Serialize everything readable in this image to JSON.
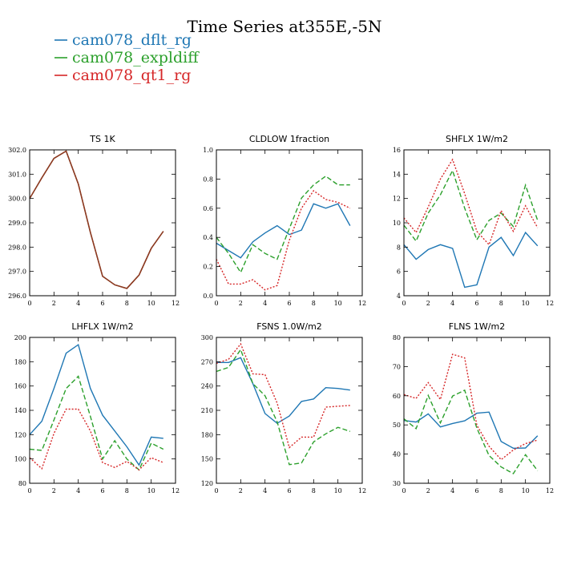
{
  "figure": {
    "title": "Time Series at355E,-5N",
    "legend": [
      {
        "name": "cam078_dflt_rg",
        "color": "#1f77b4",
        "dash": "solid"
      },
      {
        "name": "cam078_expldiff",
        "color": "#2ca02c",
        "dash": "dashed"
      },
      {
        "name": "cam078_qt1_rg",
        "color": "#d62728",
        "dash": "dotted"
      }
    ]
  },
  "chart_data": [
    {
      "type": "line",
      "title": "TS   1K",
      "x": [
        0,
        1,
        2,
        3,
        4,
        5,
        6,
        7,
        8,
        9,
        10,
        11
      ],
      "xlim": [
        0,
        12
      ],
      "xticks": [
        0,
        2,
        4,
        6,
        8,
        10,
        12
      ],
      "xtick_labels": [
        "0",
        "2",
        "4",
        "6",
        "8",
        "10",
        "12"
      ],
      "ylim": [
        296,
        302
      ],
      "yticks": [
        296,
        297,
        298,
        299,
        300,
        301,
        302
      ],
      "ytick_labels": [
        "296.0",
        "297.0",
        "298.0",
        "299.0",
        "300.0",
        "301.0",
        "302.0"
      ],
      "series": [
        {
          "name": "cam078_dflt_rg",
          "values": [
            300.0,
            300.85,
            301.65,
            301.95,
            300.6,
            298.6,
            296.8,
            296.45,
            296.3,
            296.85,
            297.95,
            298.65
          ]
        },
        {
          "name": "cam078_expldiff",
          "values": [
            300.0,
            300.85,
            301.65,
            301.95,
            300.6,
            298.6,
            296.8,
            296.45,
            296.3,
            296.85,
            297.95,
            298.65
          ]
        },
        {
          "name": "cam078_qt1_rg",
          "values": [
            300.0,
            300.85,
            301.65,
            301.95,
            300.6,
            298.6,
            296.8,
            296.45,
            296.3,
            296.85,
            297.95,
            298.65
          ]
        }
      ]
    },
    {
      "type": "line",
      "title": "CLDLOW   1fraction",
      "x": [
        0,
        1,
        2,
        3,
        4,
        5,
        6,
        7,
        8,
        9,
        10,
        11
      ],
      "xlim": [
        0,
        12
      ],
      "xticks": [
        0,
        2,
        4,
        6,
        8,
        10,
        12
      ],
      "xtick_labels": [
        "0",
        "2",
        "4",
        "6",
        "8",
        "10",
        "12"
      ],
      "ylim": [
        0,
        1
      ],
      "yticks": [
        0,
        0.2,
        0.4,
        0.6,
        0.8,
        1.0
      ],
      "ytick_labels": [
        "0.0",
        "0.2",
        "0.4",
        "0.6",
        "0.8",
        "1.0"
      ],
      "series": [
        {
          "name": "cam078_dflt_rg",
          "values": [
            0.36,
            0.31,
            0.26,
            0.37,
            0.43,
            0.48,
            0.42,
            0.45,
            0.63,
            0.6,
            0.63,
            0.48
          ]
        },
        {
          "name": "cam078_expldiff",
          "values": [
            0.4,
            0.29,
            0.16,
            0.35,
            0.29,
            0.25,
            0.46,
            0.67,
            0.76,
            0.82,
            0.76,
            0.76
          ]
        },
        {
          "name": "cam078_qt1_rg",
          "values": [
            0.25,
            0.08,
            0.08,
            0.11,
            0.04,
            0.07,
            0.38,
            0.6,
            0.72,
            0.66,
            0.64,
            0.6
          ]
        }
      ]
    },
    {
      "type": "line",
      "title": "SHFLX   1W/m2",
      "x": [
        0,
        1,
        2,
        3,
        4,
        5,
        6,
        7,
        8,
        9,
        10,
        11
      ],
      "xlim": [
        0,
        12
      ],
      "xticks": [
        0,
        2,
        4,
        6,
        8,
        10,
        12
      ],
      "xtick_labels": [
        "0",
        "2",
        "4",
        "6",
        "8",
        "10",
        "12"
      ],
      "ylim": [
        4,
        16
      ],
      "yticks": [
        4,
        6,
        8,
        10,
        12,
        14,
        16
      ],
      "ytick_labels": [
        "4",
        "6",
        "8",
        "10",
        "12",
        "14",
        "16"
      ],
      "series": [
        {
          "name": "cam078_dflt_rg",
          "values": [
            8.2,
            7.0,
            7.8,
            8.2,
            7.9,
            4.7,
            4.9,
            8.0,
            8.8,
            7.3,
            9.2,
            8.1
          ]
        },
        {
          "name": "cam078_expldiff",
          "values": [
            9.8,
            8.5,
            10.8,
            12.3,
            14.3,
            11.2,
            8.6,
            10.2,
            10.8,
            9.7,
            13.1,
            10.2
          ]
        },
        {
          "name": "cam078_qt1_rg",
          "values": [
            10.4,
            9.2,
            11.3,
            13.6,
            15.2,
            12.4,
            9.3,
            8.2,
            11.0,
            9.3,
            11.4,
            9.6
          ]
        }
      ]
    },
    {
      "type": "line",
      "title": "LHFLX   1W/m2",
      "x": [
        0,
        1,
        2,
        3,
        4,
        5,
        6,
        7,
        8,
        9,
        10,
        11
      ],
      "xlim": [
        0,
        12
      ],
      "xticks": [
        0,
        2,
        4,
        6,
        8,
        10,
        12
      ],
      "xtick_labels": [
        "0",
        "2",
        "4",
        "6",
        "8",
        "10",
        "12"
      ],
      "ylim": [
        80,
        200
      ],
      "yticks": [
        80,
        100,
        120,
        140,
        160,
        180,
        200
      ],
      "ytick_labels": [
        "80",
        "100",
        "120",
        "140",
        "160",
        "180",
        "200"
      ],
      "series": [
        {
          "name": "cam078_dflt_rg",
          "values": [
            120,
            131,
            158,
            187,
            194,
            158,
            136,
            123,
            110,
            95,
            118,
            117
          ]
        },
        {
          "name": "cam078_expldiff",
          "values": [
            108,
            107,
            132,
            158,
            168,
            135,
            100,
            115,
            100,
            91,
            113,
            108
          ]
        },
        {
          "name": "cam078_qt1_rg",
          "values": [
            101,
            92,
            121,
            141,
            141,
            123,
            97,
            93,
            98,
            91,
            101,
            97
          ]
        }
      ]
    },
    {
      "type": "line",
      "title": "FSNS   1.0W/m2",
      "x": [
        0,
        1,
        2,
        3,
        4,
        5,
        6,
        7,
        8,
        9,
        10,
        11
      ],
      "xlim": [
        0,
        12
      ],
      "xticks": [
        0,
        2,
        4,
        6,
        8,
        10,
        12
      ],
      "xtick_labels": [
        "0",
        "2",
        "4",
        "6",
        "8",
        "10",
        "12"
      ],
      "ylim": [
        120,
        300
      ],
      "yticks": [
        120,
        150,
        180,
        210,
        240,
        270,
        300
      ],
      "ytick_labels": [
        "120",
        "150",
        "180",
        "210",
        "240",
        "270",
        "300"
      ],
      "series": [
        {
          "name": "cam078_dflt_rg",
          "values": [
            269,
            269,
            275,
            243,
            206,
            194,
            203,
            221,
            224,
            238,
            237,
            235
          ]
        },
        {
          "name": "cam078_expldiff",
          "values": [
            258,
            263,
            285,
            243,
            228,
            196,
            143,
            145,
            171,
            181,
            189,
            184
          ]
        },
        {
          "name": "cam078_qt1_rg",
          "values": [
            268,
            273,
            292,
            255,
            254,
            219,
            164,
            177,
            177,
            214,
            215,
            216
          ]
        }
      ]
    },
    {
      "type": "line",
      "title": "FLNS   1W/m2",
      "x": [
        0,
        1,
        2,
        3,
        4,
        5,
        6,
        7,
        8,
        9,
        10,
        11
      ],
      "xlim": [
        0,
        12
      ],
      "xticks": [
        0,
        2,
        4,
        6,
        8,
        10,
        12
      ],
      "xtick_labels": [
        "0",
        "2",
        "4",
        "6",
        "8",
        "10",
        "12"
      ],
      "ylim": [
        30,
        80
      ],
      "yticks": [
        30,
        40,
        50,
        60,
        70,
        80
      ],
      "ytick_labels": [
        "30",
        "40",
        "50",
        "60",
        "70",
        "80"
      ],
      "series": [
        {
          "name": "cam078_dflt_rg",
          "values": [
            51.5,
            51.0,
            53.8,
            49.3,
            50.5,
            51.4,
            54.0,
            54.4,
            44.3,
            42.0,
            42.1,
            46.3
          ]
        },
        {
          "name": "cam078_expldiff",
          "values": [
            52.1,
            48.7,
            60.1,
            50.7,
            59.9,
            61.9,
            48.9,
            39.5,
            35.6,
            33.3,
            39.8,
            34.3
          ]
        },
        {
          "name": "cam078_qt1_rg",
          "values": [
            60.4,
            59.1,
            64.5,
            58.7,
            74.2,
            73.0,
            49.9,
            42.7,
            38.1,
            41.4,
            43.6,
            44.8
          ]
        }
      ]
    }
  ]
}
